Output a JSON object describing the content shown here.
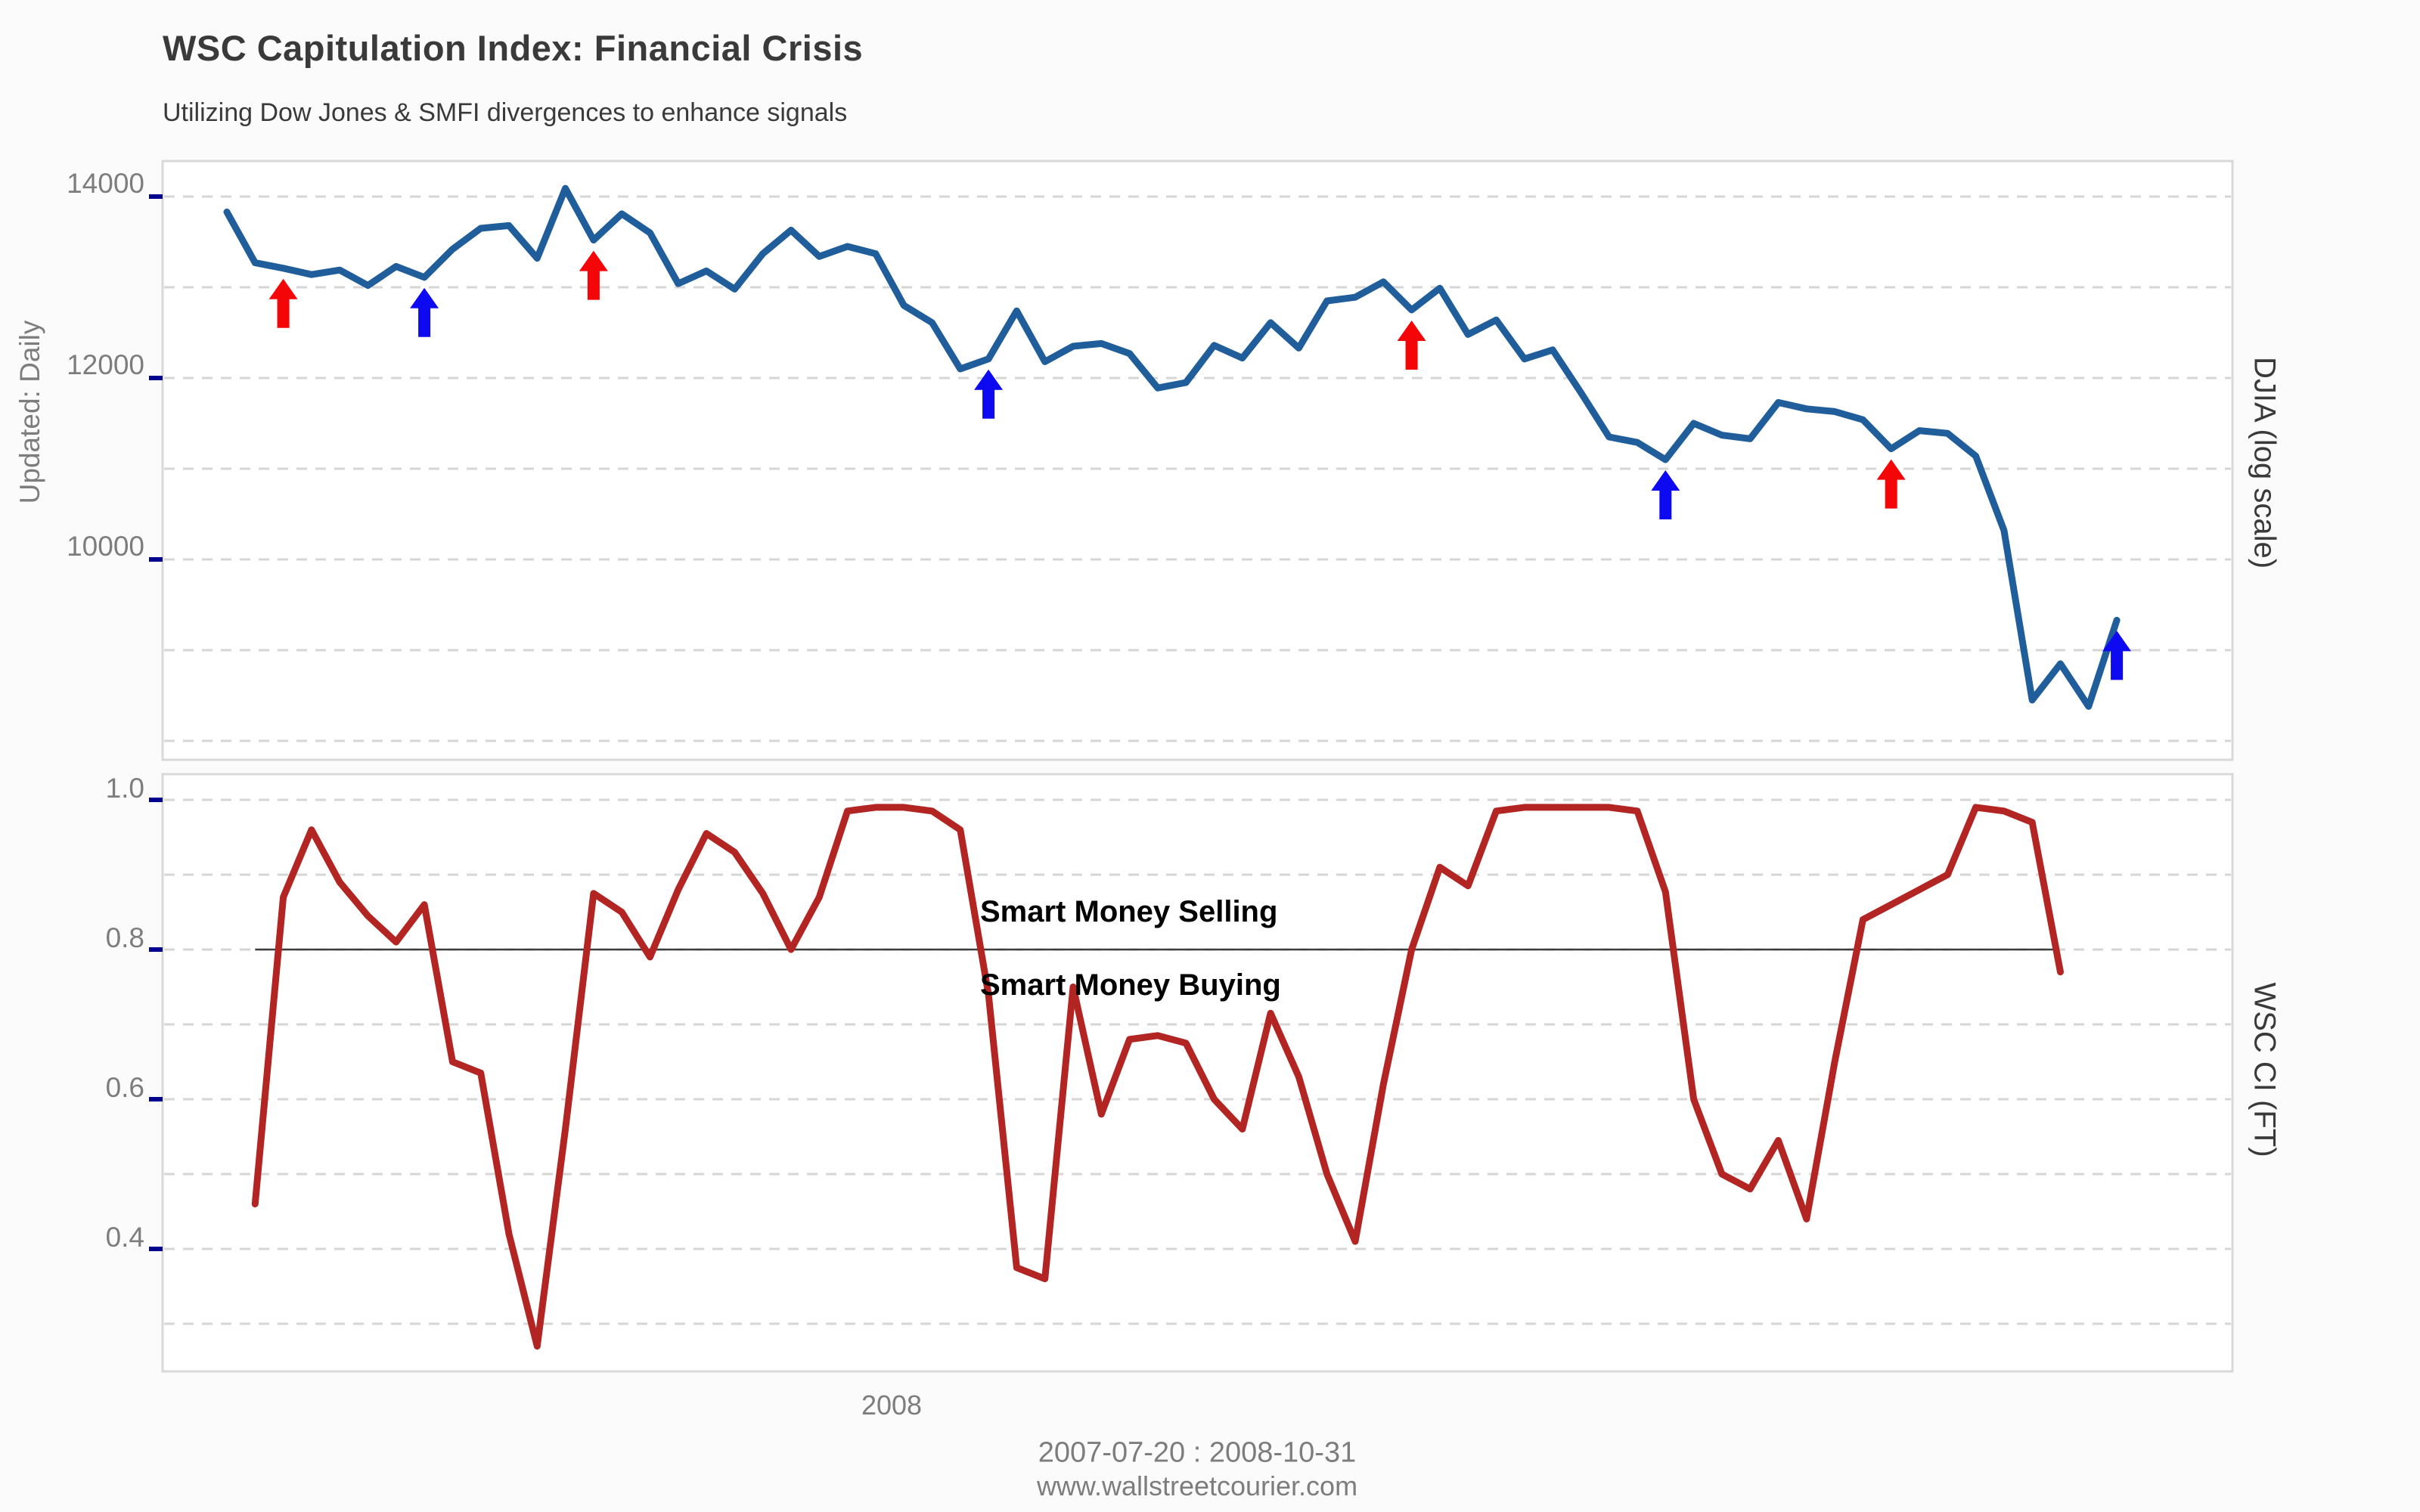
{
  "header": {
    "title": "WSC Capitulation Index: Financial Crisis",
    "subtitle": "Utilizing Dow Jones & SMFI divergences to enhance signals"
  },
  "top_panel": {
    "left_label": "Updated: Daily",
    "right_label": "DJIA (log scale)",
    "y_ticks": [
      {
        "value": 14000,
        "label": "14000"
      },
      {
        "value": 12000,
        "label": "12000"
      },
      {
        "value": 10000,
        "label": "10000"
      }
    ],
    "y_minor_values": [
      13000,
      11000,
      9000,
      8000
    ]
  },
  "bottom_panel": {
    "right_label": "WSC CI (FT)",
    "y_ticks": [
      {
        "value": 1.0,
        "label": "1.0"
      },
      {
        "value": 0.8,
        "label": "0.8"
      },
      {
        "value": 0.6,
        "label": "0.6"
      },
      {
        "value": 0.4,
        "label": "0.4"
      }
    ],
    "y_minor_values": [
      0.9,
      0.7,
      0.5,
      0.3
    ],
    "threshold_value": 0.8,
    "above_label": "Smart Money Selling",
    "below_label": "Smart Money Buying"
  },
  "x_axis": {
    "tick_label": "2008"
  },
  "footer": {
    "date_range": "2007-07-20 : 2008-10-31",
    "website": "www.wallstreetcourier.com"
  },
  "colors": {
    "djia_line": "#205d9b",
    "ci_line": "#b22523",
    "signal_red": "#f40507",
    "signal_blue": "#0d0af2",
    "grid": "#d6d6d6",
    "panel_border": "#d9d9d9",
    "panel_fill": "#ffffff",
    "axis_text": "#7d7d7d",
    "navy_tick": "#00008b",
    "threshold": "#3c3c3c"
  },
  "chart_data": [
    {
      "type": "line",
      "name": "DJIA weekly (top panel)",
      "axis": "top",
      "ylabel": "DJIA (log scale)",
      "ylim_labeled": [
        10000,
        14000
      ],
      "start_week": 0,
      "x_range": [
        "2007-07-20",
        "2008-10-31"
      ],
      "values": [
        13830,
        13270,
        13210,
        13140,
        13190,
        13020,
        13230,
        13110,
        13420,
        13650,
        13680,
        13320,
        14090,
        13520,
        13810,
        13600,
        13040,
        13180,
        12980,
        13370,
        13630,
        13340,
        13450,
        13370,
        12800,
        12610,
        12100,
        12210,
        12740,
        12180,
        12350,
        12380,
        12270,
        11890,
        11950,
        12360,
        12220,
        12610,
        12330,
        12850,
        12890,
        13060,
        12750,
        12990,
        12480,
        12640,
        12210,
        12310,
        11840,
        11350,
        11290,
        11100,
        11500,
        11370,
        11330,
        11730,
        11660,
        11630,
        11540,
        11220,
        11420,
        11390,
        11140,
        10320,
        8450,
        8850,
        8380,
        9330
      ]
    },
    {
      "type": "line",
      "name": "WSC CI (FT) (bottom panel)",
      "axis": "bottom",
      "ylabel": "WSC CI (FT)",
      "ylim_labeled": [
        0.4,
        1.0
      ],
      "start_week": 1,
      "values": [
        0.46,
        0.87,
        0.96,
        0.89,
        0.845,
        0.81,
        0.86,
        0.65,
        0.635,
        0.42,
        0.27,
        0.56,
        0.875,
        0.85,
        0.79,
        0.88,
        0.955,
        0.93,
        0.875,
        0.8,
        0.87,
        0.985,
        0.99,
        0.99,
        0.985,
        0.96,
        0.74,
        0.375,
        0.36,
        0.75,
        0.58,
        0.68,
        0.685,
        0.675,
        0.6,
        0.56,
        0.715,
        0.63,
        0.5,
        0.41,
        0.62,
        0.8,
        0.91,
        0.885,
        0.985,
        0.99,
        0.99,
        0.99,
        0.99,
        0.985,
        0.877,
        0.6,
        0.5,
        0.48,
        0.545,
        0.44,
        0.65,
        0.84,
        0.86,
        0.88,
        0.9,
        0.99,
        0.985,
        0.97,
        0.77
      ]
    },
    {
      "type": "signals",
      "name": "divergence arrows (top panel)",
      "markers": [
        {
          "week": 2,
          "color": "red"
        },
        {
          "week": 7,
          "color": "blue"
        },
        {
          "week": 13,
          "color": "red"
        },
        {
          "week": 27,
          "color": "blue"
        },
        {
          "week": 42,
          "color": "red"
        },
        {
          "week": 51,
          "color": "blue"
        },
        {
          "week": 59,
          "color": "red"
        },
        {
          "week": 67,
          "color": "blue"
        }
      ]
    }
  ]
}
